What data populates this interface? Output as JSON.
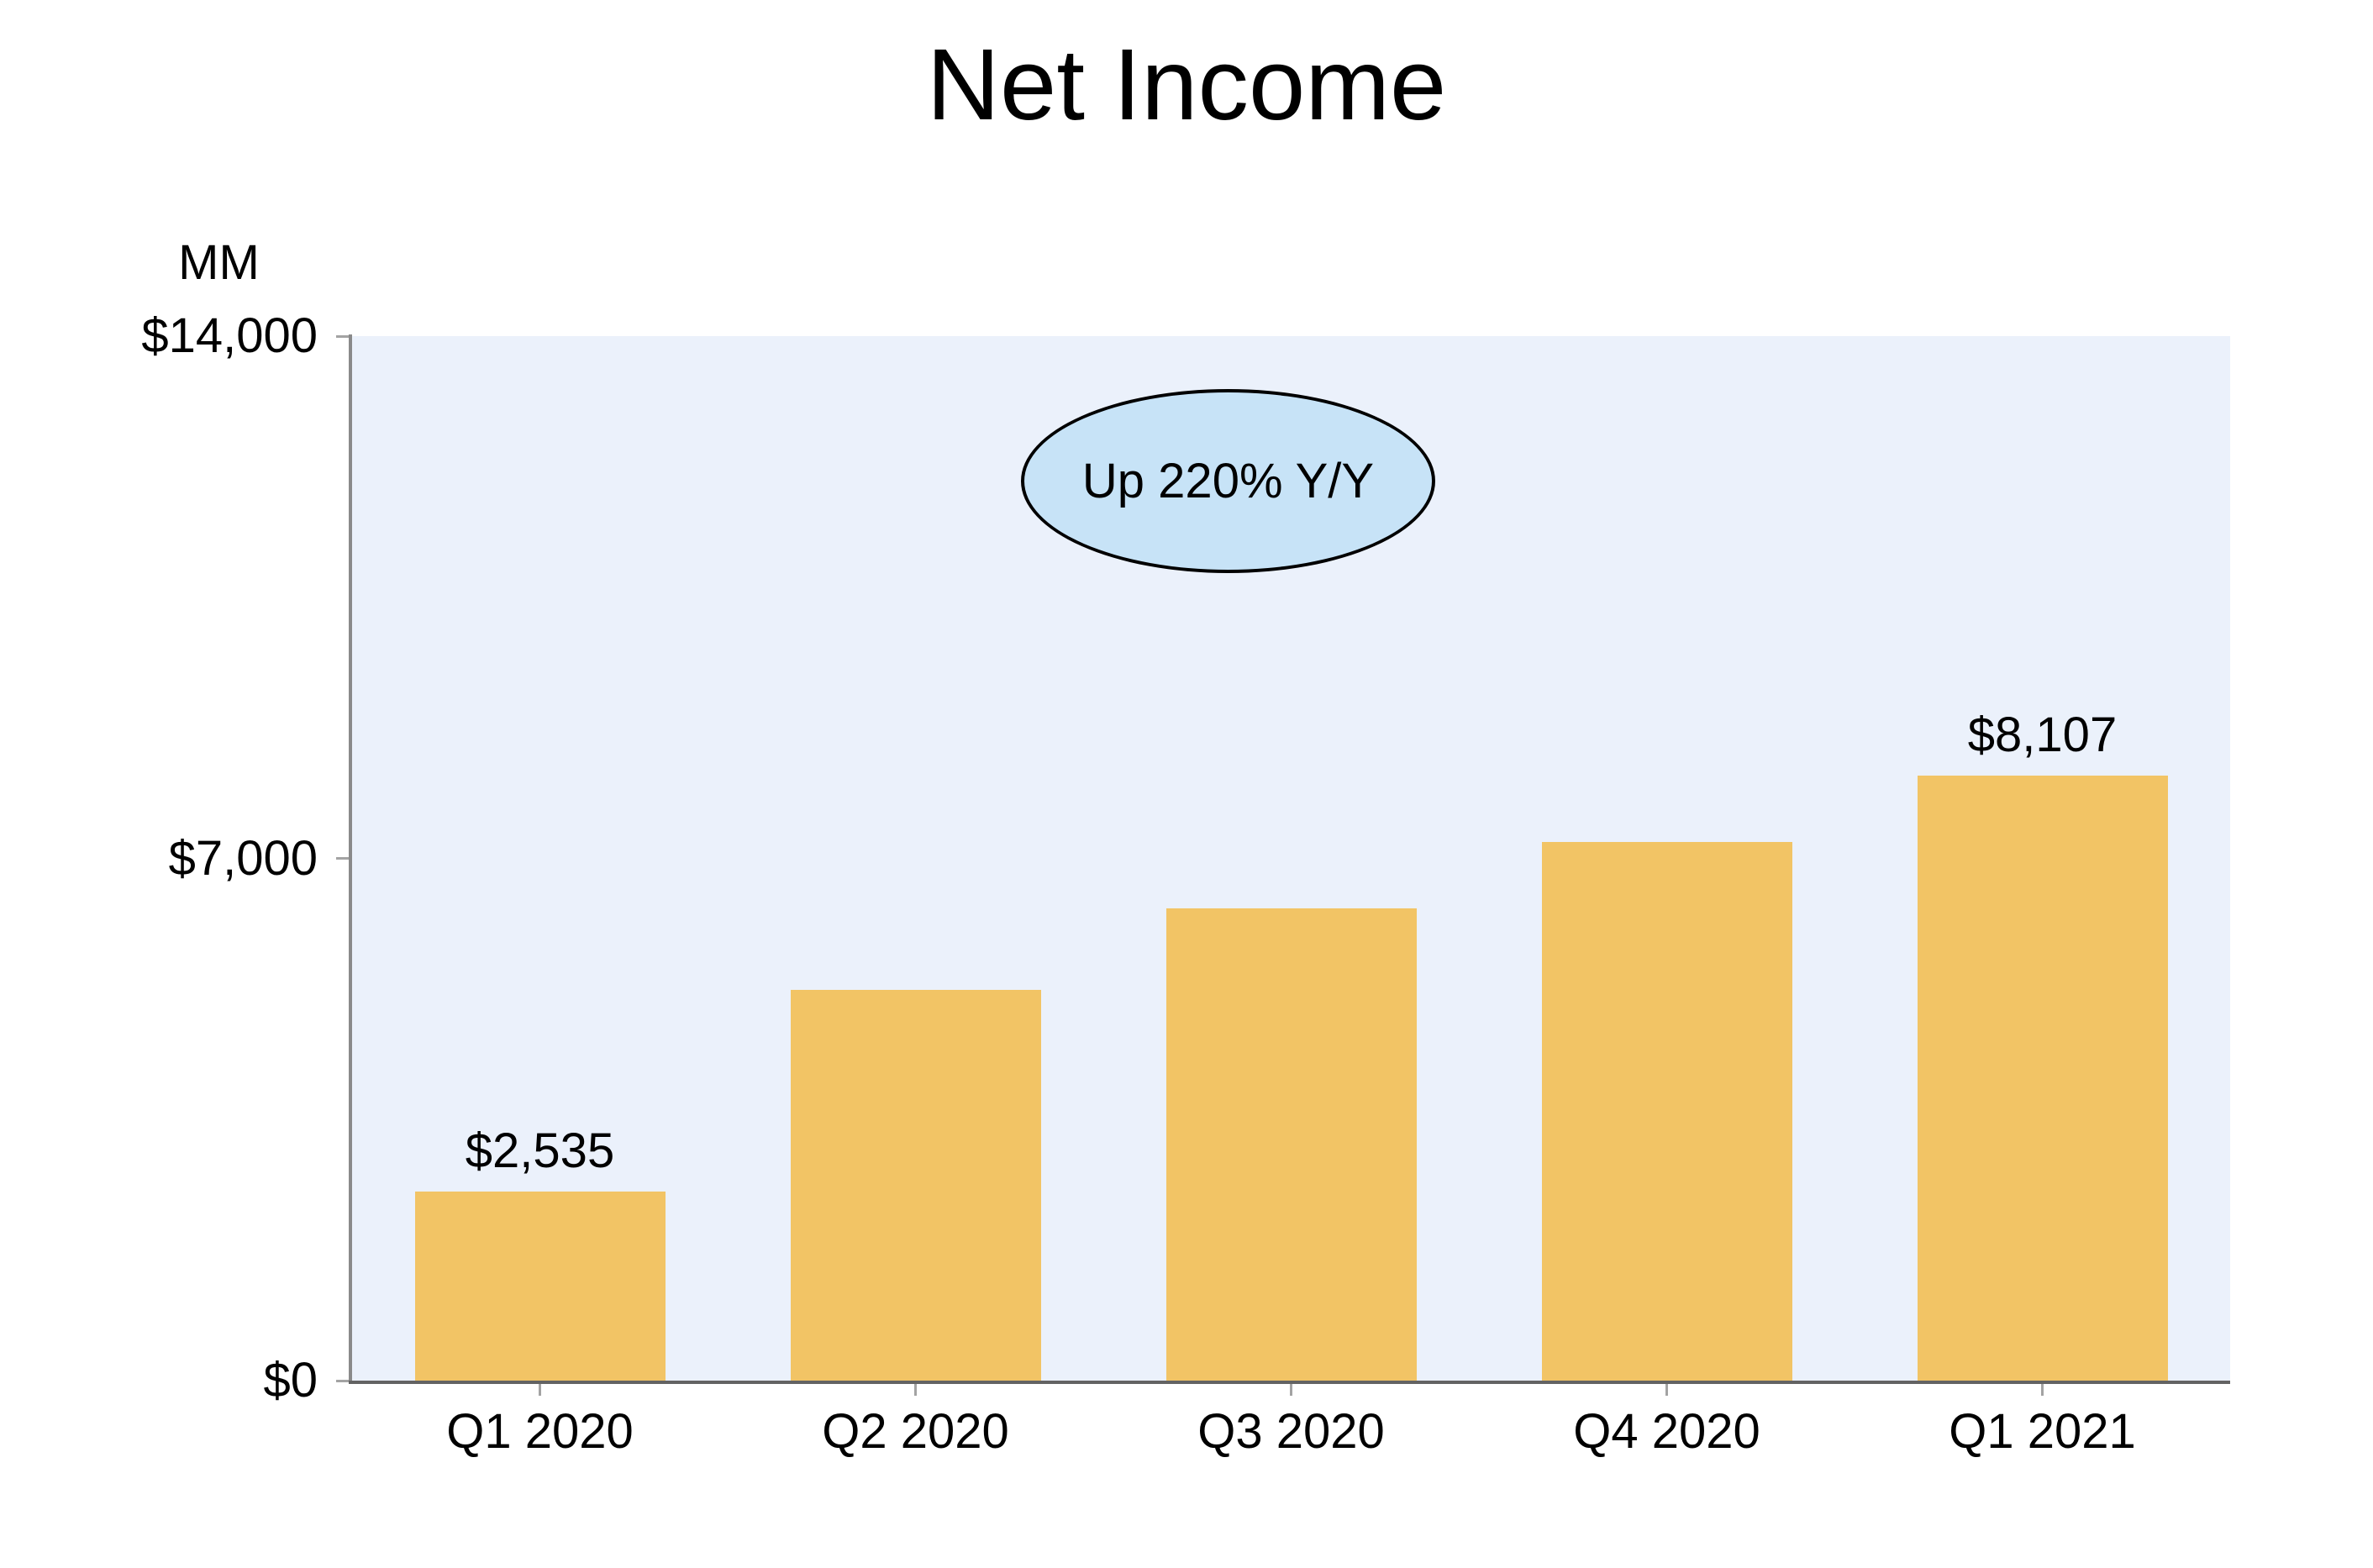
{
  "chart_data": {
    "type": "bar",
    "title": "Net Income",
    "y_unit_label": "MM",
    "categories": [
      "Q1 2020",
      "Q2 2020",
      "Q3 2020",
      "Q4 2020",
      "Q1 2021"
    ],
    "values": [
      2535,
      5243,
      6331,
      7222,
      8107
    ],
    "bar_value_labels": [
      "$2,535",
      "",
      "",
      "",
      "$8,107"
    ],
    "annotation": "Up 220% Y/Y",
    "y_ticks": [
      {
        "value": 14000,
        "label": "$14,000"
      },
      {
        "value": 7000,
        "label": "$7,000"
      },
      {
        "value": 0,
        "label": "$0"
      }
    ],
    "ylim": [
      0,
      14000
    ],
    "xlabel": "",
    "ylabel": "MM",
    "legend": "none",
    "grid": false,
    "colors": {
      "bar": "#F2C465",
      "plot_background": "#EBF1FB",
      "annotation_fill": "#C7E3F7",
      "annotation_border": "#000000",
      "axis_line": "#636363",
      "y_axis_line": "#8A8A8A",
      "tick": "#A3A3A3",
      "text": "#000000",
      "page_background": "#FFFFFF"
    }
  }
}
